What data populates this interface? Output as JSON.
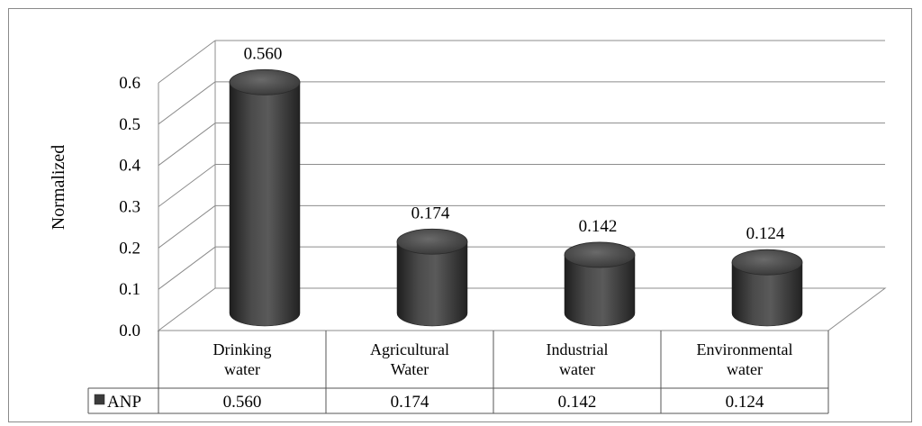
{
  "chart_data": {
    "type": "bar",
    "categories": [
      [
        "Drinking",
        "water"
      ],
      [
        "Agricultural",
        "Water"
      ],
      [
        "Industrial",
        "water"
      ],
      [
        "Environmental",
        "water"
      ]
    ],
    "series": [
      {
        "name": "ANP",
        "values": [
          0.56,
          0.174,
          0.142,
          0.124
        ],
        "color": "#3c3c3c"
      }
    ],
    "value_labels": [
      "0.560",
      "0.174",
      "0.142",
      "0.124"
    ],
    "ylabel": "Normalized",
    "ylim": [
      0,
      0.6
    ],
    "yticks": [
      "0.0",
      "0.1",
      "0.2",
      "0.3",
      "0.4",
      "0.5",
      "0.6"
    ],
    "grid": true,
    "legend": "data-table",
    "table": {
      "legend_label": "ANP",
      "cells": [
        "0.560",
        "0.174",
        "0.142",
        "0.124"
      ]
    }
  }
}
